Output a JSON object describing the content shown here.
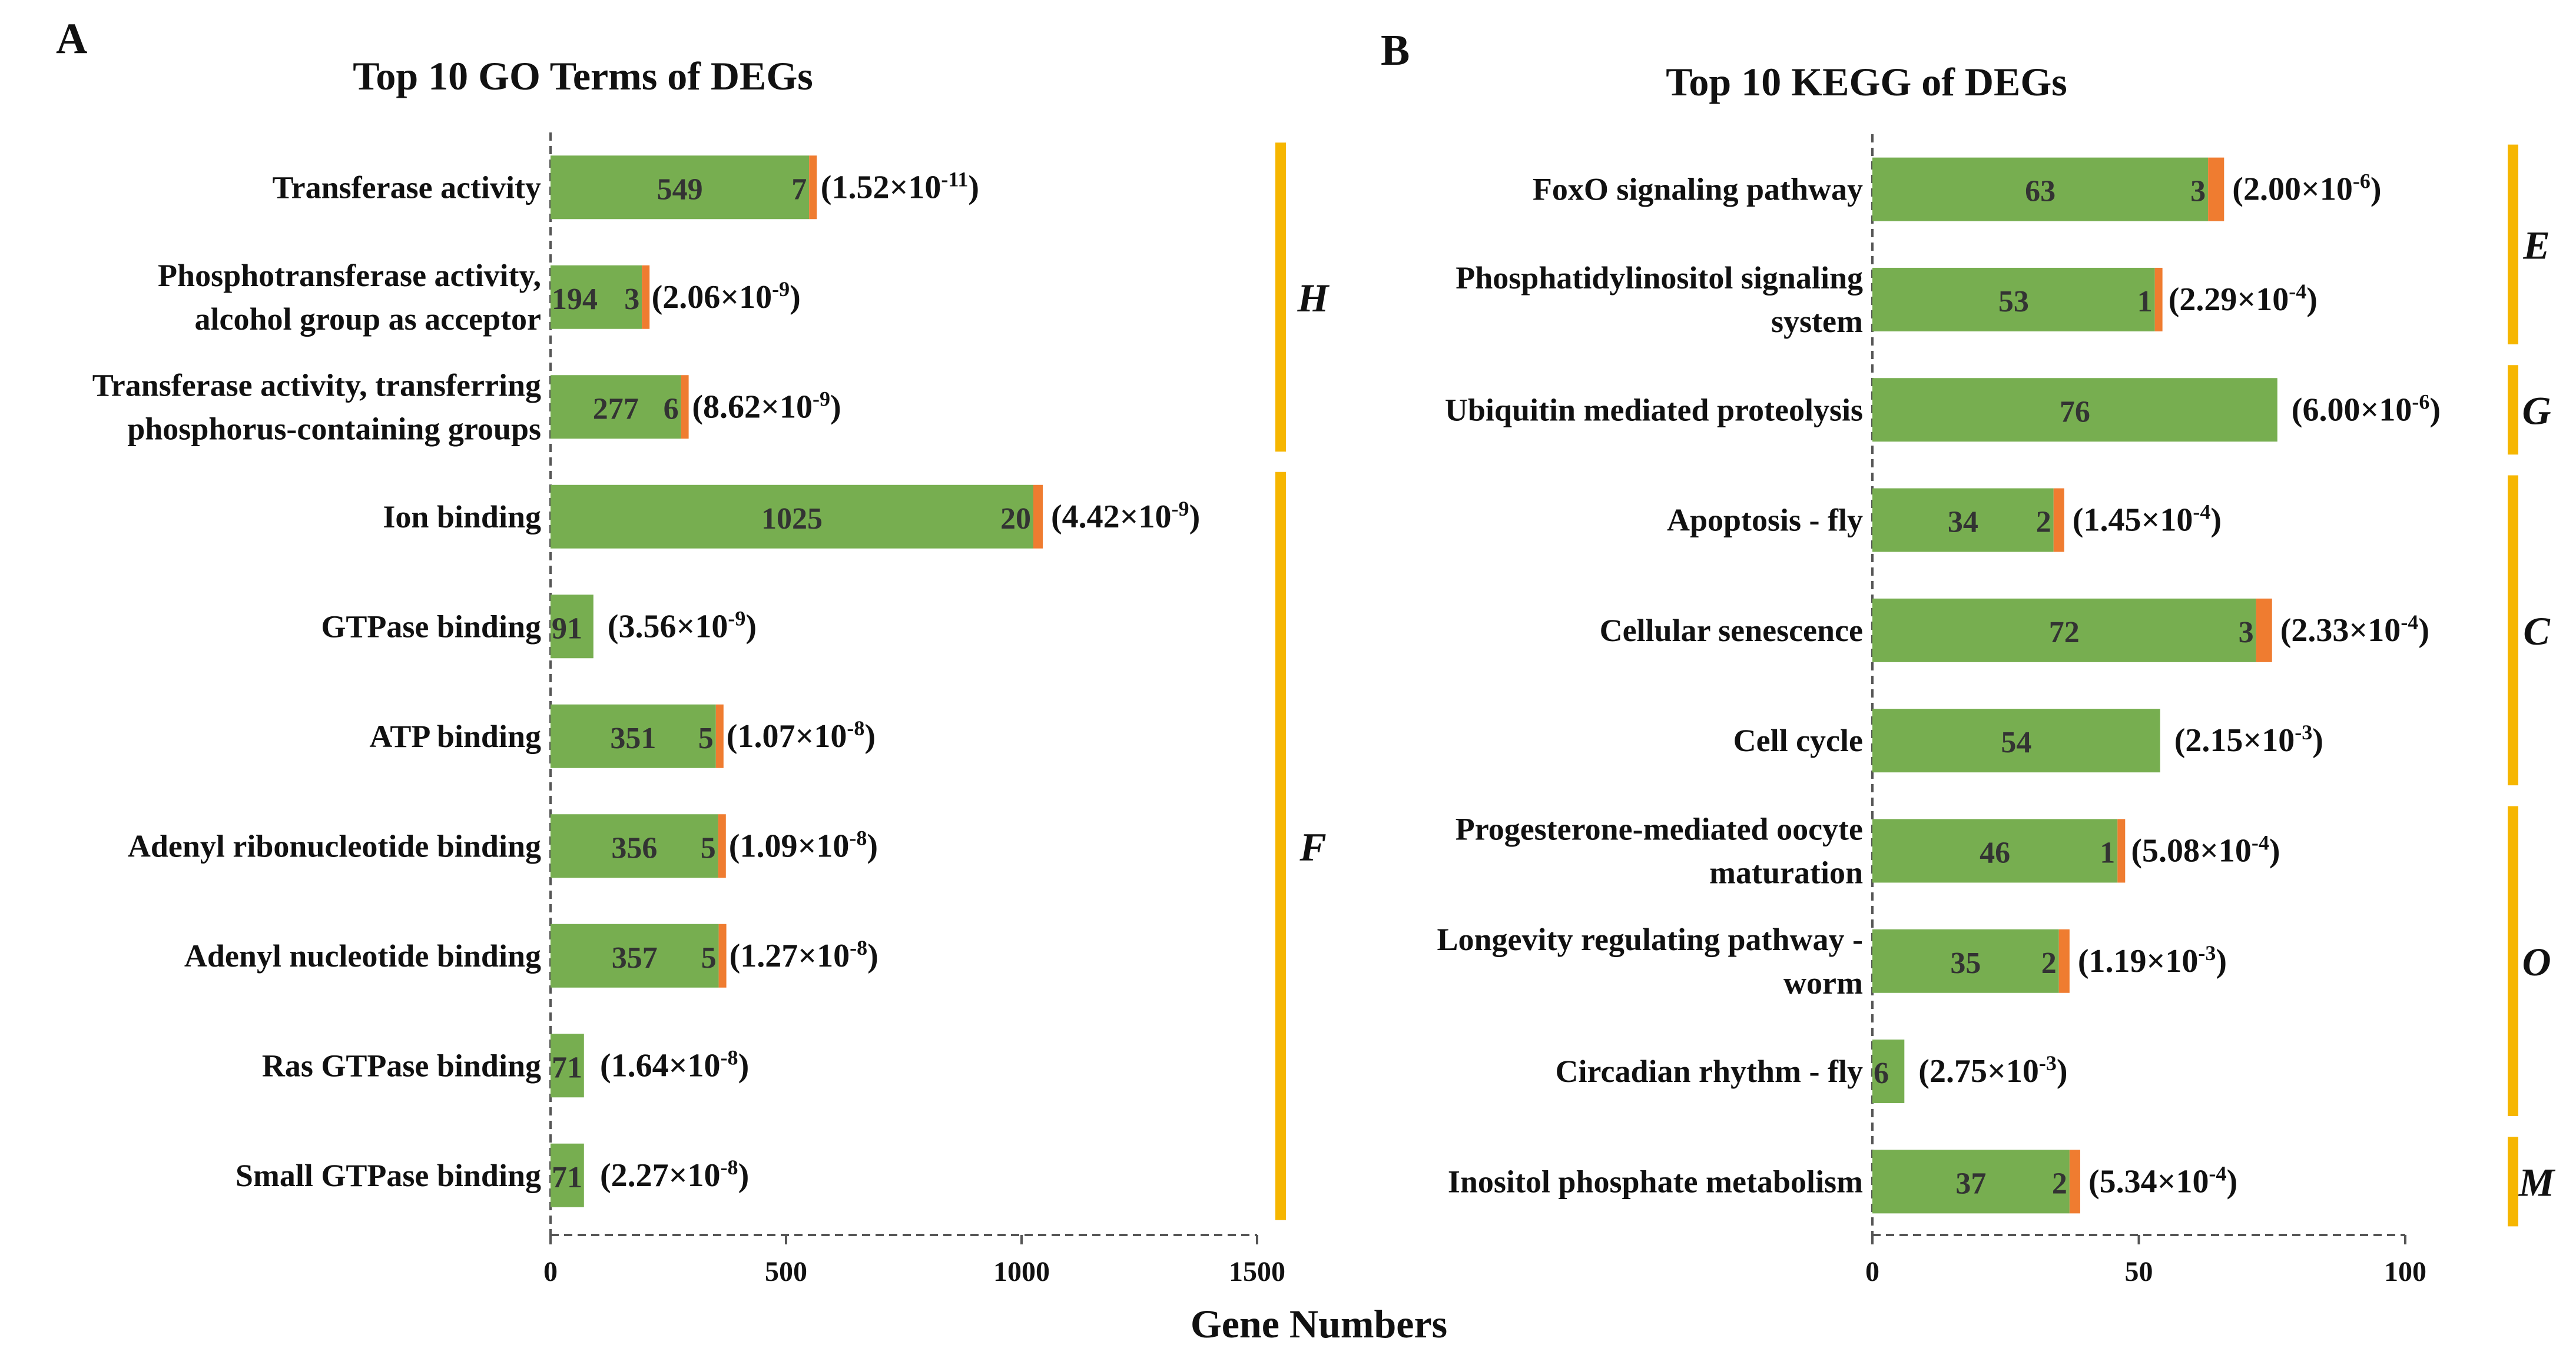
{
  "xlabel": "Gene Numbers",
  "colors": {
    "green": "#77AE50",
    "orange": "#EF7C30",
    "bracket": "#F6B600",
    "axis": "#555555",
    "text": "#111111",
    "value": "#333333"
  },
  "chart_data": [
    {
      "type": "bar",
      "panel_label": "A",
      "title": "Top 10 GO Terms of DEGs",
      "xlabel": "Gene Numbers",
      "xlim": [
        0,
        1500
      ],
      "xticks": [
        "0",
        "500",
        "1000",
        "1500"
      ],
      "categories": [
        [
          "Transferase activity"
        ],
        [
          "Phosphotransferase activity,",
          "alcohol group as acceptor"
        ],
        [
          "Transferase activity, transferring",
          "phosphorus-containing groups"
        ],
        [
          "Ion binding"
        ],
        [
          "GTPase binding"
        ],
        [
          "ATP binding"
        ],
        [
          "Adenyl ribonucleotide binding"
        ],
        [
          "Adenyl nucleotide binding"
        ],
        [
          "Ras GTPase binding"
        ],
        [
          "Small GTPase binding"
        ]
      ],
      "series": [
        {
          "name": "green",
          "values": [
            549,
            194,
            277,
            1025,
            91,
            351,
            356,
            357,
            71,
            71
          ]
        },
        {
          "name": "orange",
          "values": [
            7,
            3,
            6,
            20,
            0,
            5,
            5,
            5,
            0,
            0
          ]
        }
      ],
      "pvalues": [
        {
          "base": "(1.52×10",
          "exp": "-11",
          "tail": ")"
        },
        {
          "base": "(2.06×10",
          "exp": "-9",
          "tail": ")"
        },
        {
          "base": "(8.62×10",
          "exp": "-9",
          "tail": ")"
        },
        {
          "base": "(4.42×10",
          "exp": "-9",
          "tail": ")"
        },
        {
          "base": "(3.56×10",
          "exp": "-9",
          "tail": ")"
        },
        {
          "base": "(1.07×10",
          "exp": "-8",
          "tail": ")"
        },
        {
          "base": "(1.09×10",
          "exp": "-8",
          "tail": ")"
        },
        {
          "base": "(1.27×10",
          "exp": "-8",
          "tail": ")"
        },
        {
          "base": "(1.64×10",
          "exp": "-8",
          "tail": ")"
        },
        {
          "base": "(2.27×10",
          "exp": "-8",
          "tail": ")"
        }
      ],
      "groups": [
        {
          "label": "H",
          "from": 0,
          "to": 2
        },
        {
          "label": "F",
          "from": 3,
          "to": 9
        }
      ]
    },
    {
      "type": "bar",
      "panel_label": "B",
      "title": "Top 10 KEGG of DEGs",
      "xlabel": "Gene Numbers",
      "xlim": [
        0,
        100
      ],
      "xticks": [
        "0",
        "50",
        "100"
      ],
      "categories": [
        [
          "FoxO signaling pathway"
        ],
        [
          "Phosphatidylinositol signaling",
          "system"
        ],
        [
          "Ubiquitin mediated proteolysis"
        ],
        [
          "Apoptosis - fly"
        ],
        [
          "Cellular senescence"
        ],
        [
          "Cell cycle"
        ],
        [
          "Progesterone-mediated oocyte",
          "maturation"
        ],
        [
          "Longevity regulating pathway -",
          "worm"
        ],
        [
          "Circadian rhythm - fly"
        ],
        [
          "Inositol phosphate metabolism"
        ]
      ],
      "series": [
        {
          "name": "green",
          "values": [
            63,
            53,
            76,
            34,
            72,
            54,
            46,
            35,
            6,
            37
          ]
        },
        {
          "name": "orange",
          "values": [
            3,
            1,
            0,
            2,
            3,
            0,
            1,
            2,
            0,
            2
          ]
        }
      ],
      "pvalues": [
        {
          "base": "(2.00×10",
          "exp": "-6",
          "tail": ")"
        },
        {
          "base": "(2.29×10",
          "exp": "-4",
          "tail": ")"
        },
        {
          "base": "(6.00×10",
          "exp": "-6",
          "tail": ")"
        },
        {
          "base": "(1.45×10",
          "exp": "-4",
          "tail": ")"
        },
        {
          "base": "(2.33×10",
          "exp": "-4",
          "tail": ")"
        },
        {
          "base": "(2.15×10",
          "exp": "-3",
          "tail": ")"
        },
        {
          "base": "(5.08×10",
          "exp": "-4",
          "tail": ")"
        },
        {
          "base": "(1.19×10",
          "exp": "-3",
          "tail": ")"
        },
        {
          "base": "(2.75×10",
          "exp": "-3",
          "tail": ")"
        },
        {
          "base": "(5.34×10",
          "exp": "-4",
          "tail": ")"
        }
      ],
      "groups": [
        {
          "label": "E",
          "from": 0,
          "to": 1
        },
        {
          "label": "G",
          "from": 2,
          "to": 2
        },
        {
          "label": "C",
          "from": 3,
          "to": 5
        },
        {
          "label": "O",
          "from": 6,
          "to": 8
        },
        {
          "label": "M",
          "from": 9,
          "to": 9
        }
      ]
    }
  ]
}
